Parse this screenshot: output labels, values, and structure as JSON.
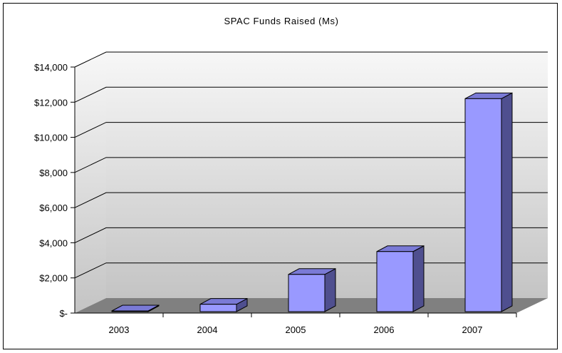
{
  "chart_data": {
    "type": "bar",
    "title": "SPAC Funds Raised (Ms)",
    "xlabel": "",
    "ylabel": "",
    "categories": [
      "2003",
      "2004",
      "2005",
      "2006",
      "2007"
    ],
    "values": [
      0,
      500,
      2200,
      3500,
      12200
    ],
    "ylim": [
      0,
      14000
    ],
    "yticks": [
      0,
      2000,
      4000,
      6000,
      8000,
      10000,
      12000,
      14000
    ],
    "ytick_labels": [
      "$-",
      "$2,000",
      "$4,000",
      "$6,000",
      "$8,000",
      "$10,000",
      "$12,000",
      "$14,000"
    ],
    "grid": true,
    "legend": "none",
    "style": "3d-column",
    "colors": {
      "bar_front": "#9999ff",
      "bar_top": "#7a7ad6",
      "bar_side": "#4f4f8f",
      "floor": "#808080",
      "wall_top": "#f7f7f7",
      "wall_bottom": "#c4c4c4",
      "gridline": "#000000"
    }
  }
}
